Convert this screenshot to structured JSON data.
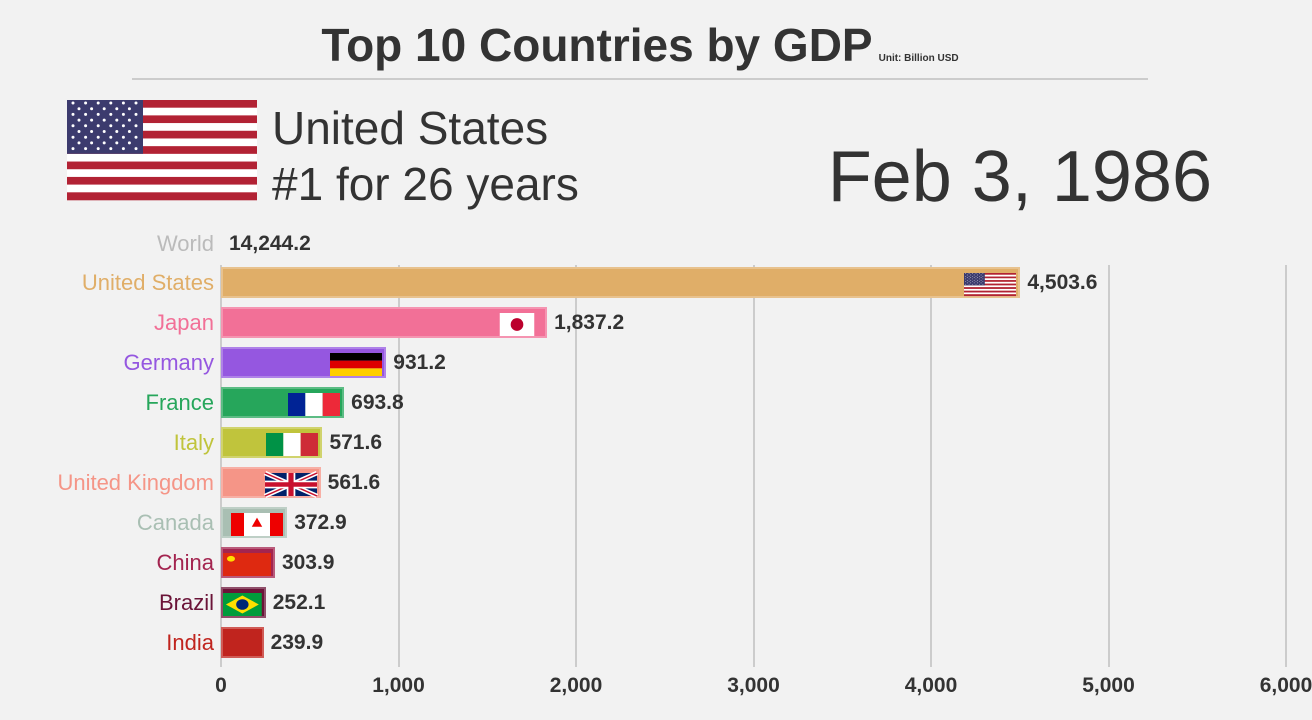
{
  "title": "Top 10 Countries by GDP",
  "unit": "Unit: Billion USD",
  "leader": {
    "name": "United States",
    "streak": "#1 for 26 years",
    "flag": "us-flag-icon"
  },
  "date": "Feb 3, 1986",
  "world": {
    "label": "World",
    "value": "14,244.2"
  },
  "chart_data": {
    "type": "bar",
    "orientation": "horizontal",
    "categories": [
      "United States",
      "Japan",
      "Germany",
      "France",
      "Italy",
      "United Kingdom",
      "Canada",
      "China",
      "Brazil",
      "India"
    ],
    "values": [
      4503.6,
      1837.2,
      931.2,
      693.8,
      571.6,
      561.6,
      372.9,
      303.9,
      252.1,
      239.9
    ],
    "value_labels": [
      "4,503.6",
      "1,837.2",
      "931.2",
      "693.8",
      "571.6",
      "561.6",
      "372.9",
      "303.9",
      "252.1",
      "239.9"
    ],
    "colors": [
      "#e0ae68",
      "#f27097",
      "#9557e0",
      "#26a65b",
      "#c0c43c",
      "#f59587",
      "#a9bfb3",
      "#a3244f",
      "#6b1438",
      "#c0241e"
    ],
    "flags": [
      "us",
      "jp",
      "de",
      "fr",
      "it",
      "gb",
      "ca",
      "cn",
      "br",
      "in"
    ],
    "xlim": [
      0,
      6000
    ],
    "ticks": [
      0,
      1000,
      2000,
      3000,
      4000,
      5000,
      6000
    ],
    "tick_labels": [
      "0",
      "1,000",
      "2,000",
      "3,000",
      "4,000",
      "5,000",
      "6,000"
    ],
    "grid": true
  }
}
